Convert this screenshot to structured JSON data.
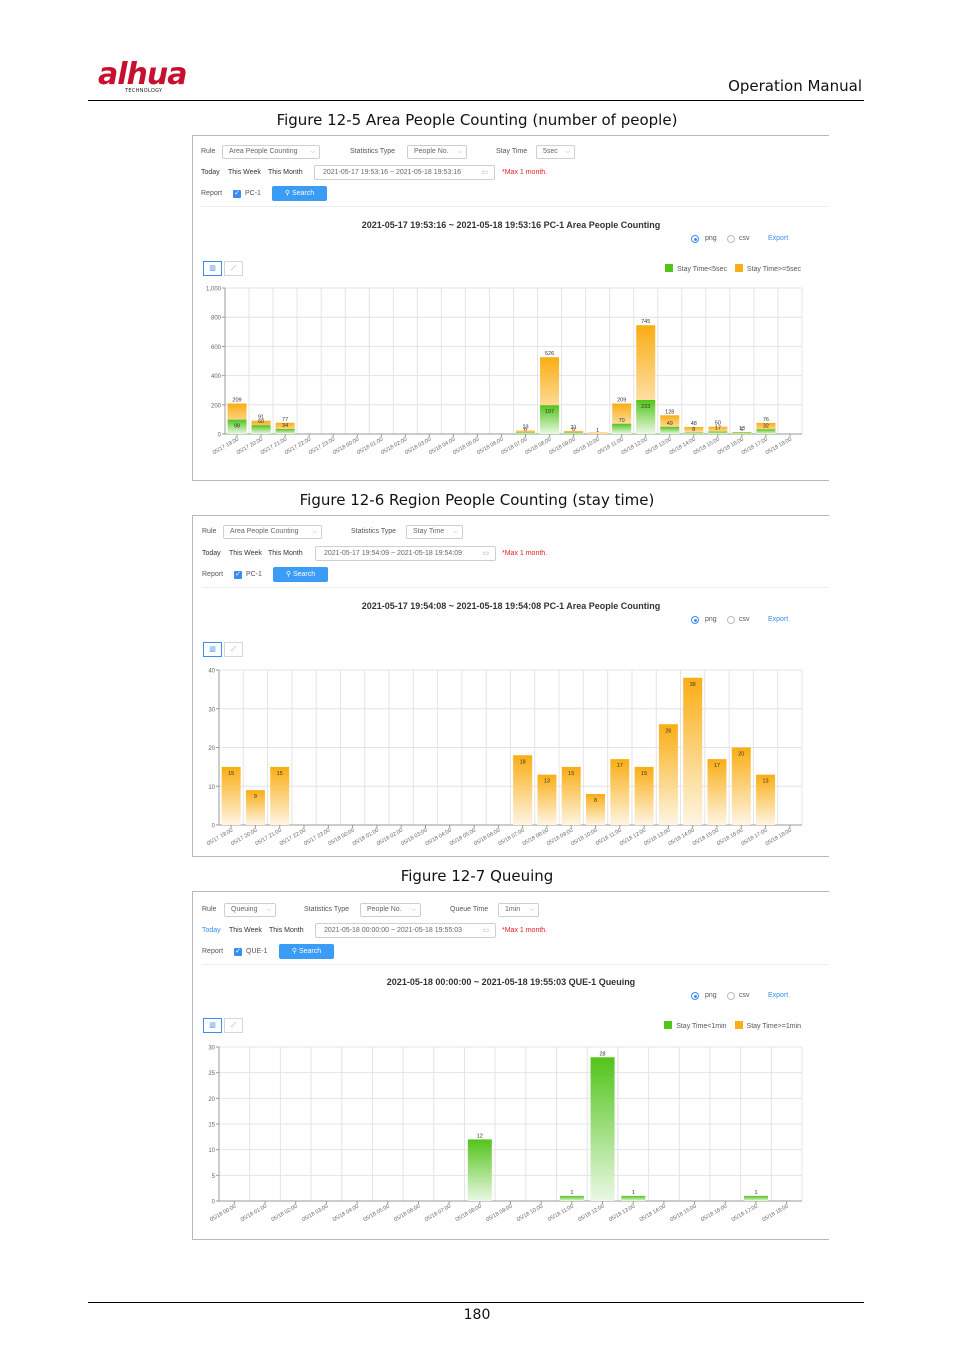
{
  "header": {
    "logo_text": "alhua",
    "logo_subtext": "TECHNOLOGY",
    "manual_title": "Operation Manual"
  },
  "figures": [
    {
      "caption": "Figure 12-5 Area People Counting (number of people)",
      "controls": {
        "rule_label": "Rule",
        "rule_value": "Area People Counting",
        "stat_label": "Statistics Type",
        "stat_value": "People No.",
        "time_label": "Stay Time",
        "time_value": "5sec",
        "period_today": "Today",
        "period_week": "This Week",
        "period_month": "This Month",
        "active_period": "",
        "date_range": "2021-05-17 19:53:16 ~ 2021-05-18 19:53:16",
        "max_hint": "*Max 1 month.",
        "report_label": "Report",
        "report_item": "PC-1",
        "search_label": "Search"
      },
      "chart_title": "2021-05-17 19:53:16 ~ 2021-05-18 19:53:16  PC-1  Area People Counting",
      "format_png": "png",
      "format_csv": "csv",
      "format_selected": "png",
      "export_label": "Export",
      "legend": [
        {
          "label": "Stay Time<5sec",
          "color": "#52c41a"
        },
        {
          "label": "Stay Time>=5sec",
          "color": "#faad14"
        }
      ]
    },
    {
      "caption": "Figure 12-6 Region People Counting (stay time)",
      "controls": {
        "rule_label": "Rule",
        "rule_value": "Area People Counting",
        "stat_label": "Statistics Type",
        "stat_value": "Stay Time",
        "period_today": "Today",
        "period_week": "This Week",
        "period_month": "This Month",
        "active_period": "",
        "date_range": "2021-05-17 19:54:09 ~ 2021-05-18 19:54:09",
        "max_hint": "*Max 1 month.",
        "report_label": "Report",
        "report_item": "PC-1",
        "search_label": "Search"
      },
      "chart_title": "2021-05-17 19:54:08 ~ 2021-05-18 19:54:08  PC-1  Area People Counting",
      "format_png": "png",
      "format_csv": "csv",
      "format_selected": "png",
      "export_label": "Export"
    },
    {
      "caption": "Figure 12-7 Queuing",
      "controls": {
        "rule_label": "Rule",
        "rule_value": "Queuing",
        "stat_label": "Statistics Type",
        "stat_value": "People No.",
        "time_label": "Queue Time",
        "time_value": "1min",
        "period_today": "Today",
        "period_week": "This Week",
        "period_month": "This Month",
        "active_period": "Today",
        "date_range": "2021-05-18 00:00:00 ~ 2021-05-18 19:55:03",
        "max_hint": "*Max 1 month.",
        "report_label": "Report",
        "report_item": "QUE-1",
        "search_label": "Search"
      },
      "chart_title": "2021-05-18 00:00:00 ~ 2021-05-18 19:55:03  QUE-1  Queuing",
      "format_png": "png",
      "format_csv": "csv",
      "format_selected": "png",
      "export_label": "Export",
      "legend": [
        {
          "label": "Stay Time<1min",
          "color": "#52c41a"
        },
        {
          "label": "Stay Time>=1min",
          "color": "#faad14"
        }
      ]
    }
  ],
  "chart_data": [
    {
      "type": "bar",
      "stacked": true,
      "categories": [
        "05/17 19:00",
        "05/17 20:00",
        "05/17 21:00",
        "05/17 22:00",
        "05/17 23:00",
        "05/18 00:00",
        "05/18 01:00",
        "05/18 02:00",
        "05/18 03:00",
        "05/18 04:00",
        "05/18 05:00",
        "05/18 06:00",
        "05/18 07:00",
        "05/18 08:00",
        "05/18 09:00",
        "05/18 10:00",
        "05/18 11:00",
        "05/18 12:00",
        "05/18 13:00",
        "05/18 14:00",
        "05/18 15:00",
        "05/18 16:00",
        "05/18 17:00",
        "05/18 18:00"
      ],
      "series": [
        {
          "name": "Stay Time<5sec",
          "color": "#52c41a",
          "values": [
            98,
            60,
            34,
            0,
            0,
            0,
            0,
            0,
            0,
            0,
            0,
            0,
            6,
            197,
            6,
            0,
            70,
            233,
            49,
            8,
            17,
            6,
            32,
            0
          ]
        },
        {
          "name": "Stay Time>=5sec",
          "color": "#faad14",
          "values": [
            209,
            91,
            77,
            0,
            0,
            0,
            0,
            0,
            0,
            0,
            0,
            0,
            23,
            526,
            21,
            1,
            209,
            745,
            128,
            48,
            50,
            13,
            76,
            0
          ]
        }
      ],
      "ylim": [
        0,
        1000
      ],
      "yticks": [
        "0",
        "200",
        "400",
        "600",
        "800",
        "1,000"
      ],
      "legend_position": "top-right",
      "grid": true
    },
    {
      "type": "bar",
      "categories": [
        "05/17 19:00",
        "05/17 20:00",
        "05/17 21:00",
        "05/17 22:00",
        "05/17 23:00",
        "05/18 00:00",
        "05/18 01:00",
        "05/18 02:00",
        "05/18 03:00",
        "05/18 04:00",
        "05/18 05:00",
        "05/18 06:00",
        "05/18 07:00",
        "05/18 08:00",
        "05/18 09:00",
        "05/18 10:00",
        "05/18 11:00",
        "05/18 12:00",
        "05/18 13:00",
        "05/18 14:00",
        "05/18 15:00",
        "05/18 16:00",
        "05/18 17:00",
        "05/18 18:00"
      ],
      "series": [
        {
          "color": "#faad14",
          "values": [
            15,
            9,
            15,
            0,
            0,
            0,
            0,
            0,
            0,
            0,
            0,
            0,
            18,
            13,
            15,
            8,
            17,
            15,
            26,
            38,
            17,
            20,
            13,
            0
          ]
        }
      ],
      "ylim": [
        0,
        40
      ],
      "yticks": [
        "0",
        "10",
        "20",
        "30",
        "40"
      ],
      "grid": true
    },
    {
      "type": "bar",
      "stacked": true,
      "categories": [
        "05/18 00:00",
        "05/18 01:00",
        "05/18 02:00",
        "05/18 03:00",
        "05/18 04:00",
        "05/18 05:00",
        "05/18 06:00",
        "05/18 07:00",
        "05/18 08:00",
        "05/18 09:00",
        "05/18 10:00",
        "05/18 11:00",
        "05/18 12:00",
        "05/18 13:00",
        "05/18 14:00",
        "05/18 15:00",
        "05/18 16:00",
        "05/18 17:00",
        "05/18 18:00"
      ],
      "series": [
        {
          "name": "Stay Time<1min",
          "color": "#52c41a",
          "values": [
            0,
            0,
            0,
            0,
            0,
            0,
            0,
            0,
            12,
            0,
            0,
            1,
            28,
            1,
            0,
            0,
            0,
            1,
            0
          ]
        },
        {
          "name": "Stay Time>=1min",
          "color": "#faad14",
          "values": [
            0,
            0,
            0,
            0,
            0,
            0,
            0,
            0,
            0,
            0,
            0,
            0,
            0,
            0,
            0,
            0,
            0,
            0,
            0
          ]
        }
      ],
      "ylim": [
        0,
        30
      ],
      "yticks": [
        "0",
        "5",
        "10",
        "15",
        "20",
        "25",
        "30"
      ],
      "legend_position": "top-right",
      "grid": true
    }
  ],
  "footer": {
    "page_number": "180"
  }
}
